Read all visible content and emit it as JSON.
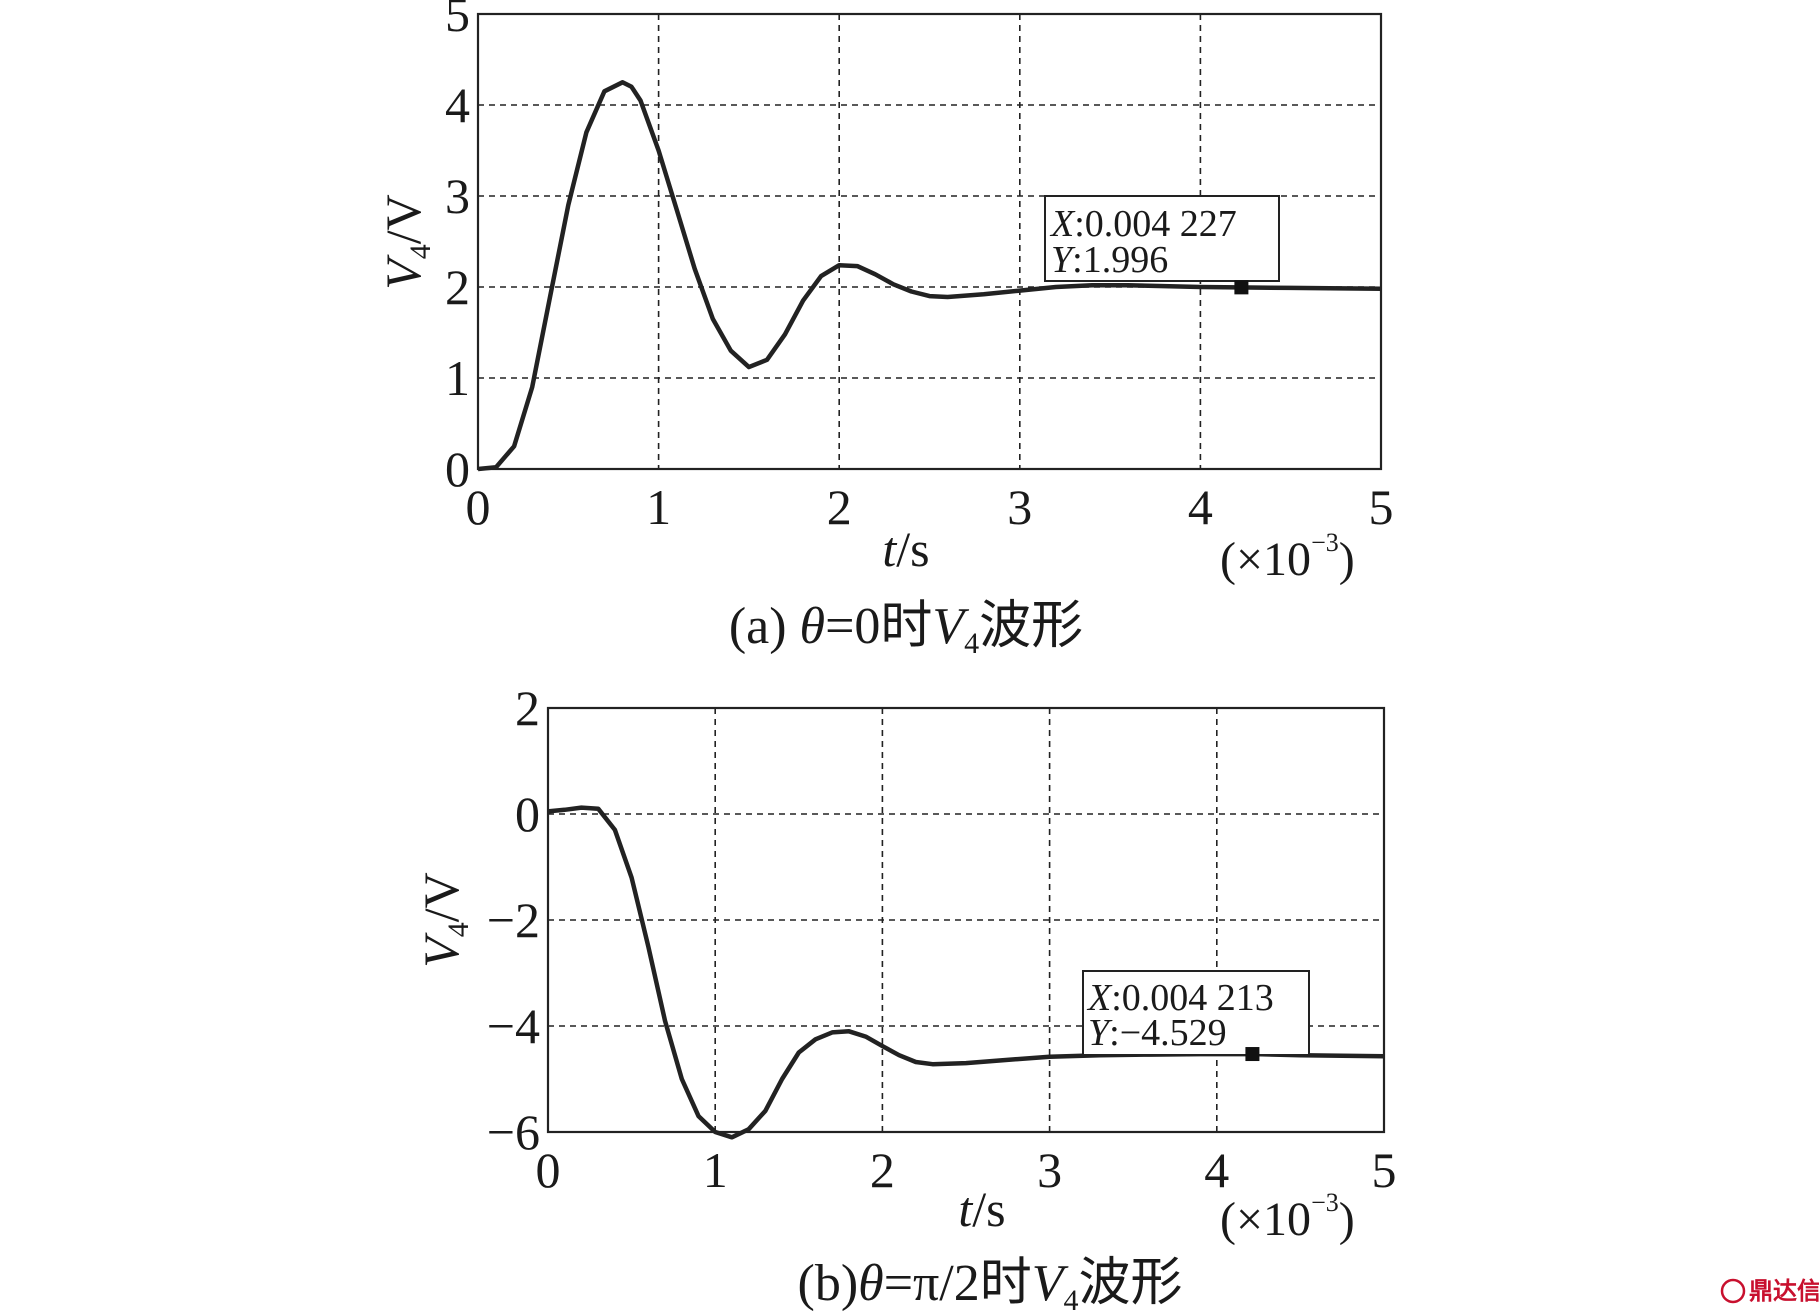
{
  "chart_data": [
    {
      "type": "line",
      "caption_prefix": "(a) ",
      "caption_theta": "θ",
      "caption_eq": "=0时",
      "caption_v": "V",
      "caption_sub": "4",
      "caption_suffix": "波形",
      "xlabel_var": "t",
      "xlabel_unit": "/s",
      "ylabel_var": "V",
      "ylabel_sub": "4",
      "ylabel_unit": "/V",
      "x_multiplier_prefix": "(×10",
      "x_multiplier_exp": "−3",
      "x_multiplier_suffix": ")",
      "xlim": [
        0,
        5
      ],
      "ylim": [
        0,
        5
      ],
      "xticks": [
        "0",
        "1",
        "2",
        "3",
        "4",
        "5"
      ],
      "yticks": [
        "0",
        "1",
        "2",
        "3",
        "4",
        "5"
      ],
      "grid": true,
      "series": [
        {
          "x": [
            0,
            0.1,
            0.2,
            0.3,
            0.4,
            0.5,
            0.6,
            0.7,
            0.8,
            0.85,
            0.9,
            1.0,
            1.1,
            1.2,
            1.3,
            1.4,
            1.5,
            1.6,
            1.7,
            1.8,
            1.9,
            2.0,
            2.1,
            2.2,
            2.3,
            2.4,
            2.5,
            2.6,
            2.8,
            3.0,
            3.2,
            3.4,
            3.6,
            3.8,
            4.0,
            4.2,
            4.5,
            5.0
          ],
          "y": [
            0,
            0.02,
            0.25,
            0.9,
            1.9,
            2.9,
            3.7,
            4.15,
            4.25,
            4.2,
            4.05,
            3.5,
            2.85,
            2.2,
            1.65,
            1.3,
            1.12,
            1.2,
            1.48,
            1.85,
            2.12,
            2.24,
            2.23,
            2.14,
            2.03,
            1.95,
            1.9,
            1.89,
            1.92,
            1.96,
            2.0,
            2.02,
            2.02,
            2.01,
            2.0,
            1.996,
            1.99,
            1.98
          ]
        }
      ],
      "datatip": {
        "x_key": "X",
        "x_value": ":0.004 227",
        "y_key": "Y",
        "y_value": ":1.996",
        "point_x": 4.227,
        "point_y": 1.996
      }
    },
    {
      "type": "line",
      "caption_prefix": "(b)",
      "caption_theta": "θ",
      "caption_eq": "=π/2时",
      "caption_v": "V",
      "caption_sub": "4",
      "caption_suffix": "波形",
      "xlabel_var": "t",
      "xlabel_unit": "/s",
      "ylabel_var": "V",
      "ylabel_sub": "4",
      "ylabel_unit": "/V",
      "x_multiplier_prefix": "(×10",
      "x_multiplier_exp": "−3",
      "x_multiplier_suffix": ")",
      "xlim": [
        0,
        5
      ],
      "ylim": [
        -6,
        2
      ],
      "xticks": [
        "0",
        "1",
        "2",
        "3",
        "4",
        "5"
      ],
      "yticks": [
        "−6",
        "−4",
        "−2",
        "0",
        "2"
      ],
      "grid": true,
      "series": [
        {
          "x": [
            0,
            0.1,
            0.2,
            0.3,
            0.4,
            0.5,
            0.6,
            0.7,
            0.8,
            0.9,
            1.0,
            1.1,
            1.2,
            1.3,
            1.4,
            1.5,
            1.6,
            1.7,
            1.8,
            1.9,
            2.0,
            2.1,
            2.2,
            2.3,
            2.5,
            2.7,
            3.0,
            3.3,
            3.6,
            3.9,
            4.213,
            4.5,
            5.0
          ],
          "y": [
            0.05,
            0.08,
            0.12,
            0.1,
            -0.3,
            -1.2,
            -2.5,
            -3.9,
            -5.0,
            -5.7,
            -6.0,
            -6.1,
            -5.95,
            -5.6,
            -5.0,
            -4.5,
            -4.25,
            -4.12,
            -4.1,
            -4.2,
            -4.38,
            -4.55,
            -4.68,
            -4.72,
            -4.7,
            -4.65,
            -4.58,
            -4.55,
            -4.54,
            -4.53,
            -4.529,
            -4.55,
            -4.57
          ]
        }
      ],
      "datatip": {
        "x_key": "X",
        "x_value": ":0.004 213",
        "y_key": "Y",
        "y_value": ":−4.529",
        "point_x": 4.213,
        "point_y": -4.529
      }
    }
  ],
  "watermark": "鼎达信"
}
